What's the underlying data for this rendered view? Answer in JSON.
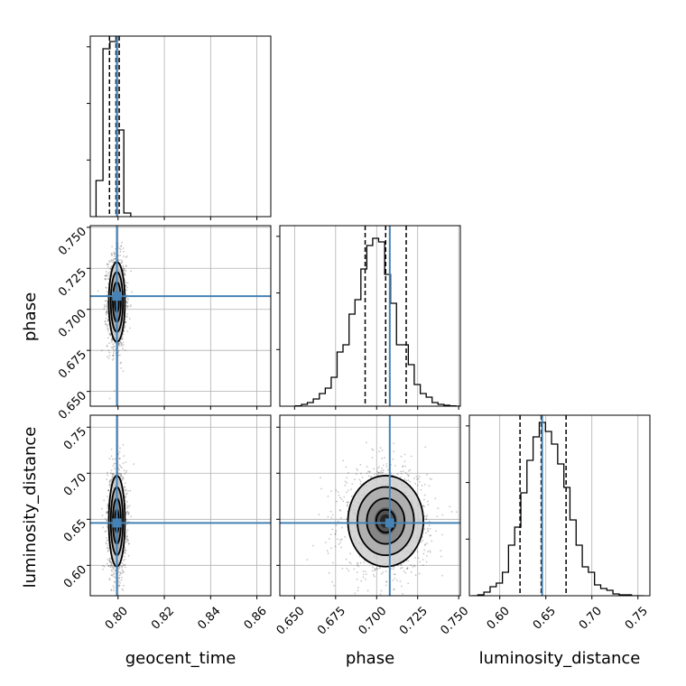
{
  "chart_data": {
    "type": "corner",
    "parameters": [
      "geocent_time",
      "phase",
      "luminosity_distance"
    ],
    "axis_labels": {
      "geocent_time": "geocent_time",
      "phase": "phase",
      "luminosity_distance": "luminosity_distance"
    },
    "ranges": {
      "geocent_time": [
        0.788,
        0.866
      ],
      "phase": [
        0.641,
        0.751
      ],
      "luminosity_distance": [
        0.567,
        0.763
      ]
    },
    "ticks": {
      "geocent_time": [
        0.8,
        0.82,
        0.84,
        0.86
      ],
      "phase": [
        0.65,
        0.675,
        0.7,
        0.725,
        0.75
      ],
      "luminosity_distance": [
        0.6,
        0.65,
        0.7,
        0.75
      ]
    },
    "tick_labels": {
      "geocent_time": [
        "0.80",
        "0.82",
        "0.84",
        "0.86"
      ],
      "phase": [
        "0.650",
        "0.675",
        "0.700",
        "0.725",
        "0.750"
      ],
      "luminosity_distance": [
        "0.60",
        "0.65",
        "0.70",
        "0.75"
      ]
    },
    "truths": {
      "geocent_time": 0.7995,
      "phase": 0.708,
      "luminosity_distance": 0.646
    },
    "truth_color": "#4682b4",
    "quantiles": {
      "geocent_time": [
        0.7963,
        0.7991,
        0.8005
      ],
      "phase": [
        0.693,
        0.7055,
        0.718
      ],
      "luminosity_distance": [
        0.622,
        0.645,
        0.672
      ]
    },
    "histograms": {
      "geocent_time": {
        "edges": [
          0.7905,
          0.7935,
          0.7965,
          0.7995,
          0.8025,
          0.8055
        ],
        "counts": [
          0.2,
          0.93,
          0.97,
          0.48,
          0.02
        ]
      },
      "phase": {
        "edges": [
          0.6506,
          0.6542,
          0.6578,
          0.6614,
          0.6651,
          0.6687,
          0.6723,
          0.6759,
          0.6795,
          0.6832,
          0.6868,
          0.6904,
          0.694,
          0.6976,
          0.7012,
          0.7049,
          0.7085,
          0.7121,
          0.7157,
          0.7193,
          0.7229,
          0.7266,
          0.7302,
          0.7338,
          0.7374,
          0.741,
          0.7446,
          0.7483,
          0.751
        ],
        "counts": [
          0.002,
          0.01,
          0.02,
          0.04,
          0.07,
          0.1,
          0.16,
          0.3,
          0.34,
          0.51,
          0.59,
          0.76,
          0.89,
          0.93,
          0.91,
          0.73,
          0.57,
          0.34,
          0.34,
          0.23,
          0.12,
          0.07,
          0.05,
          0.02,
          0.01,
          0.005,
          0.002,
          0.0
        ]
      },
      "luminosity_distance": {
        "edges": [
          0.5695,
          0.5762,
          0.5828,
          0.5895,
          0.5962,
          0.6029,
          0.6095,
          0.6162,
          0.6229,
          0.6295,
          0.6362,
          0.6429,
          0.6496,
          0.6562,
          0.6629,
          0.6696,
          0.6762,
          0.6829,
          0.6896,
          0.6962,
          0.7029,
          0.7096,
          0.7163,
          0.7229,
          0.7296,
          0.7363,
          0.743,
          0.7496,
          0.7563
        ],
        "counts": [
          0.0,
          0.005,
          0.02,
          0.05,
          0.07,
          0.13,
          0.28,
          0.38,
          0.57,
          0.75,
          0.88,
          0.96,
          0.91,
          0.84,
          0.73,
          0.6,
          0.42,
          0.28,
          0.16,
          0.13,
          0.06,
          0.04,
          0.03,
          0.01,
          0.005,
          0.005,
          0.0,
          0.0
        ]
      }
    },
    "scatter_2d": {
      "geocent_time_phase": {
        "x_mean": 0.7995,
        "x_sd": 0.00175,
        "y_mean": 0.7045,
        "y_sd": 0.0122
      },
      "geocent_time_luminosity_distance": {
        "x_mean": 0.7995,
        "x_sd": 0.00175,
        "y_mean": 0.648,
        "y_sd": 0.0247
      },
      "phase_luminosity_distance": {
        "x_mean": 0.7055,
        "x_sd": 0.0115,
        "y_mean": 0.648,
        "y_sd": 0.0247
      }
    },
    "grid": true
  }
}
